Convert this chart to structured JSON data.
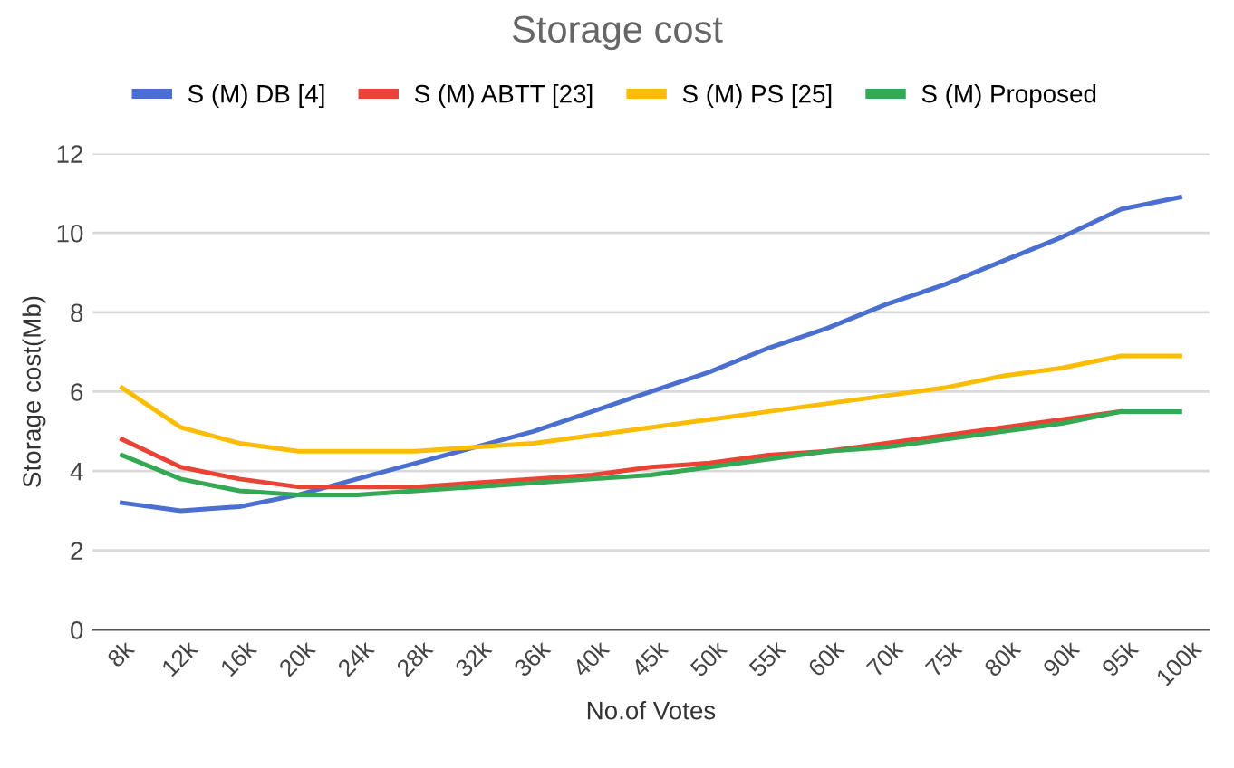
{
  "chart_data": {
    "type": "line",
    "title": "Storage cost",
    "xlabel": "No.of Votes",
    "ylabel": "Storage cost(Mb)",
    "categories": [
      "8k",
      "12k",
      "16k",
      "20k",
      "24k",
      "28k",
      "32k",
      "36k",
      "40k",
      "45k",
      "50k",
      "55k",
      "60k",
      "70k",
      "75k",
      "80k",
      "90k",
      "95k",
      "100k"
    ],
    "series": [
      {
        "name": "S (M) DB [4]",
        "color": "#4a6fd0",
        "values": [
          3.2,
          3.0,
          3.1,
          3.4,
          3.8,
          4.2,
          4.6,
          5.0,
          5.5,
          6.0,
          6.5,
          7.1,
          7.6,
          8.2,
          8.7,
          9.3,
          9.9,
          10.6,
          10.9
        ]
      },
      {
        "name": "S (M) ABTT [23]",
        "color": "#ea4335",
        "values": [
          4.8,
          4.1,
          3.8,
          3.6,
          3.6,
          3.6,
          3.7,
          3.8,
          3.9,
          4.1,
          4.2,
          4.4,
          4.5,
          4.7,
          4.9,
          5.1,
          5.3,
          5.5,
          null
        ]
      },
      {
        "name": "S (M) PS [25]",
        "color": "#fbbc04",
        "values": [
          6.1,
          5.1,
          4.7,
          4.5,
          4.5,
          4.5,
          4.6,
          4.7,
          4.9,
          5.1,
          5.3,
          5.5,
          5.7,
          5.9,
          6.1,
          6.4,
          6.6,
          6.9,
          6.9
        ]
      },
      {
        "name": "S (M) Proposed",
        "color": "#34a853",
        "values": [
          4.4,
          3.8,
          3.5,
          3.4,
          3.4,
          3.5,
          3.6,
          3.7,
          3.8,
          3.9,
          4.1,
          4.3,
          4.5,
          4.6,
          4.8,
          5.0,
          5.2,
          5.5,
          5.5
        ]
      }
    ],
    "ylim": [
      0,
      12
    ],
    "yticks": [
      0,
      2,
      4,
      6,
      8,
      10,
      12
    ],
    "grid": "y",
    "legend": "top",
    "marker": "none",
    "line_style": "solid"
  }
}
